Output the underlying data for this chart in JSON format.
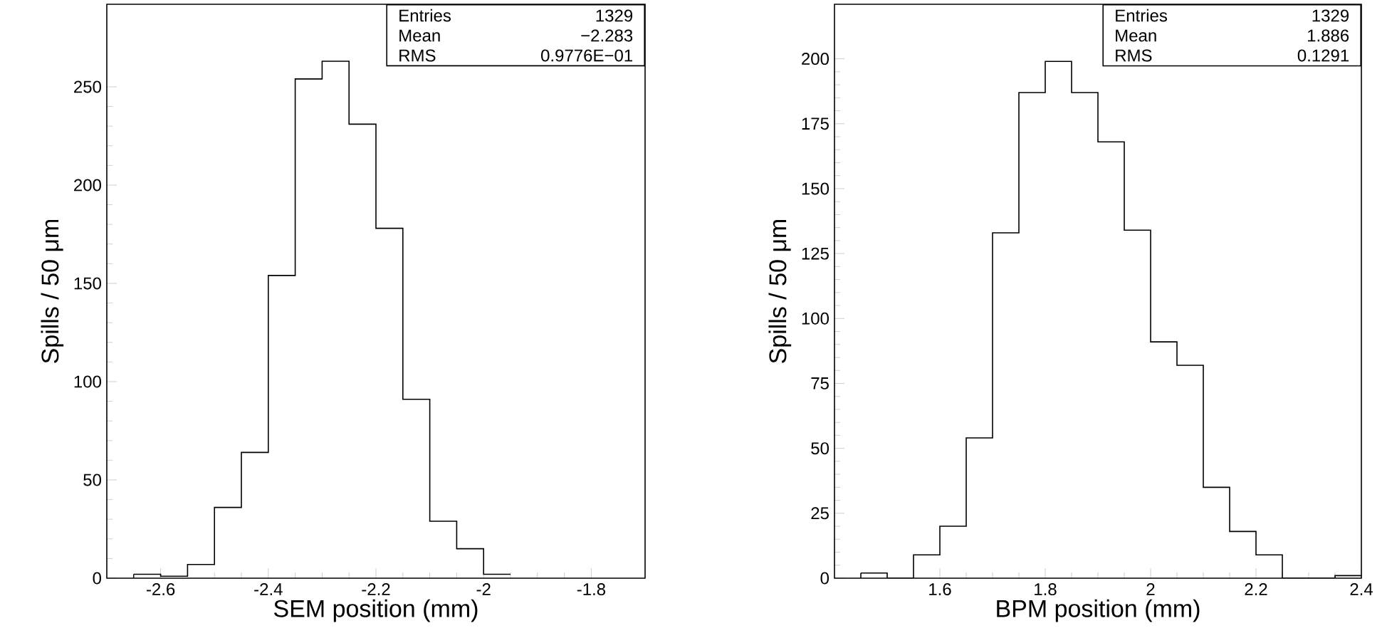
{
  "chart_data": [
    {
      "type": "histogram",
      "xlabel": "SEM position (mm)",
      "ylabel": "Spills / 50 μm",
      "bins": [
        -2.65,
        -2.6,
        -2.55,
        -2.5,
        -2.45,
        -2.4,
        -2.35,
        -2.3,
        -2.25,
        -2.2,
        -2.15,
        -2.1,
        -2.05,
        -2.0,
        -1.95
      ],
      "values": [
        2,
        1,
        7,
        36,
        64,
        154,
        254,
        263,
        231,
        178,
        91,
        29,
        15,
        2
      ],
      "color": "#000000",
      "xlim": [
        -2.7,
        -1.7
      ],
      "ylim": [
        0,
        292
      ],
      "xticks": [
        -2.6,
        -2.4,
        -2.2,
        -2,
        -1.8
      ],
      "yticks": [
        0,
        50,
        100,
        150,
        200,
        250
      ],
      "annotations": [
        "Entries",
        "1329",
        "Mean",
        "−2.283",
        "RMS",
        "0.9776E−01"
      ]
    },
    {
      "type": "histogram",
      "xlabel": "BPM position (mm)",
      "ylabel": "Spills / 50 μm",
      "bins": [
        1.45,
        1.5,
        1.55,
        1.6,
        1.65,
        1.7,
        1.75,
        1.8,
        1.85,
        1.9,
        1.95,
        2.0,
        2.05,
        2.1,
        2.15,
        2.2,
        2.25,
        2.3,
        2.35,
        2.4
      ],
      "values": [
        2,
        0,
        9,
        20,
        54,
        133,
        187,
        199,
        187,
        168,
        134,
        91,
        82,
        35,
        18,
        9,
        0,
        0,
        1
      ],
      "color": "#000000",
      "xlim": [
        1.4,
        2.4
      ],
      "ylim": [
        0,
        221
      ],
      "xticks": [
        1.6,
        1.8,
        2,
        2.2,
        2.4
      ],
      "yticks": [
        0,
        25,
        50,
        75,
        100,
        125,
        150,
        175,
        200
      ],
      "annotations": [
        "Entries",
        "1329",
        "Mean",
        "1.886",
        "RMS",
        "0.1291"
      ]
    }
  ]
}
